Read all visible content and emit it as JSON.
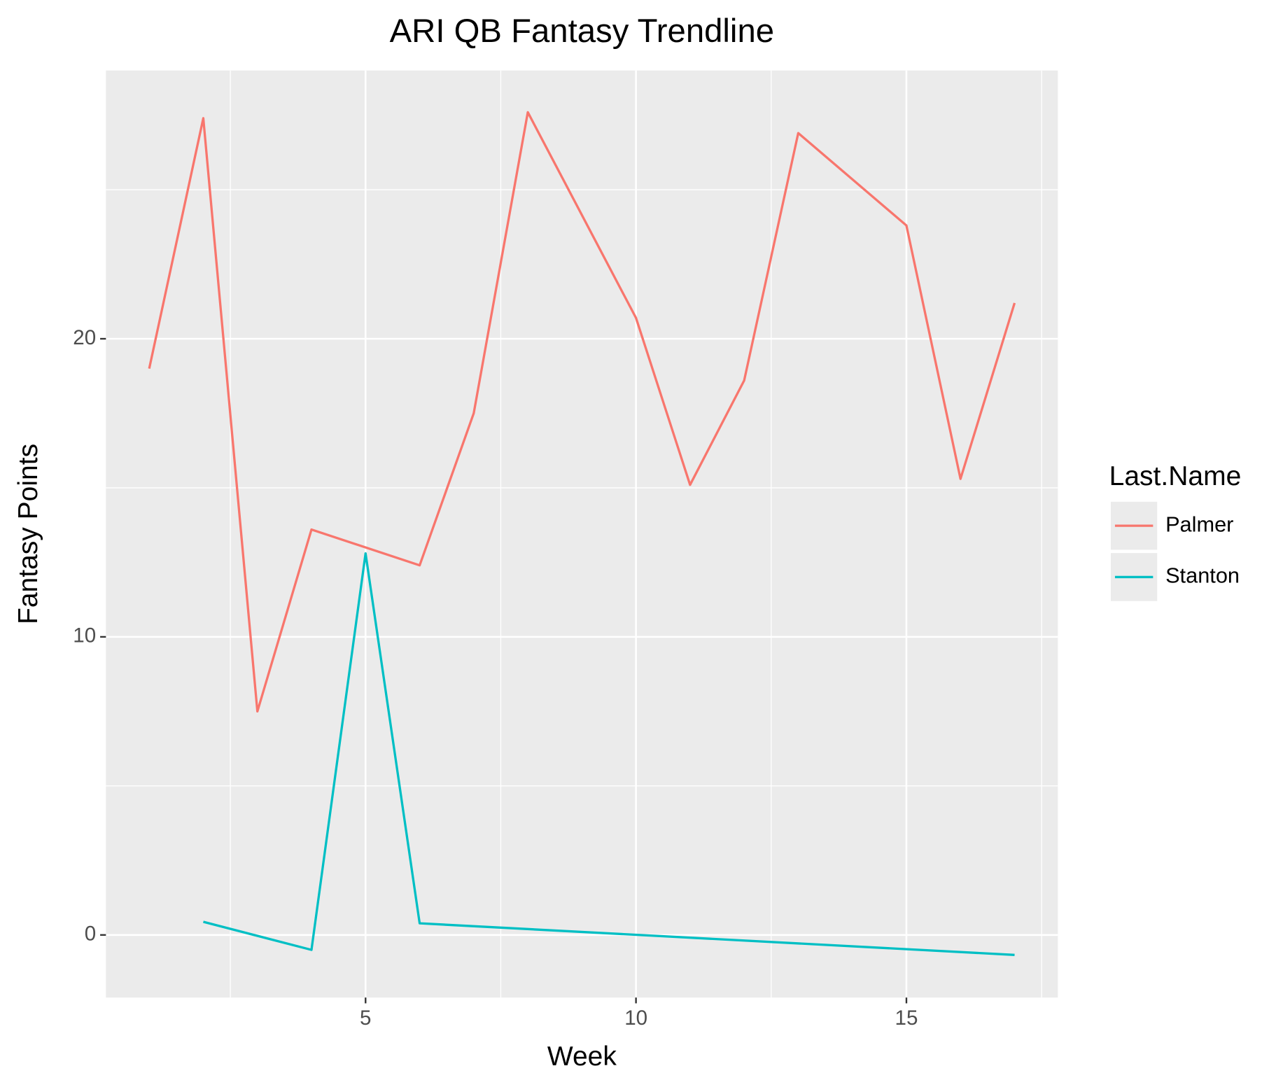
{
  "chart_data": {
    "type": "line",
    "title": "ARI QB Fantasy Trendline",
    "x_label": "Week",
    "y_label": "Fantasy Points",
    "legend_title": "Last.Name",
    "series": [
      {
        "name": "Palmer",
        "color": "#F8766D",
        "x": [
          1,
          2,
          3,
          4,
          6,
          7,
          8,
          10,
          11,
          12,
          13,
          15,
          16,
          17
        ],
        "values": [
          19.0,
          27.4,
          7.5,
          13.6,
          12.4,
          17.5,
          27.6,
          20.7,
          15.1,
          18.6,
          26.9,
          23.8,
          15.3,
          21.2
        ]
      },
      {
        "name": "Stanton",
        "color": "#00BFC4",
        "x": [
          2,
          4,
          5,
          6,
          17
        ],
        "values": [
          0.44,
          -0.5,
          12.8,
          0.39,
          -0.67
        ]
      }
    ],
    "xlim": [
      0.2,
      17.8
    ],
    "xticks": [
      5,
      10,
      15
    ],
    "ylim": [
      -2.1,
      29
    ],
    "yticks": [
      0,
      10,
      20
    ],
    "grid": true,
    "legend": "right"
  }
}
